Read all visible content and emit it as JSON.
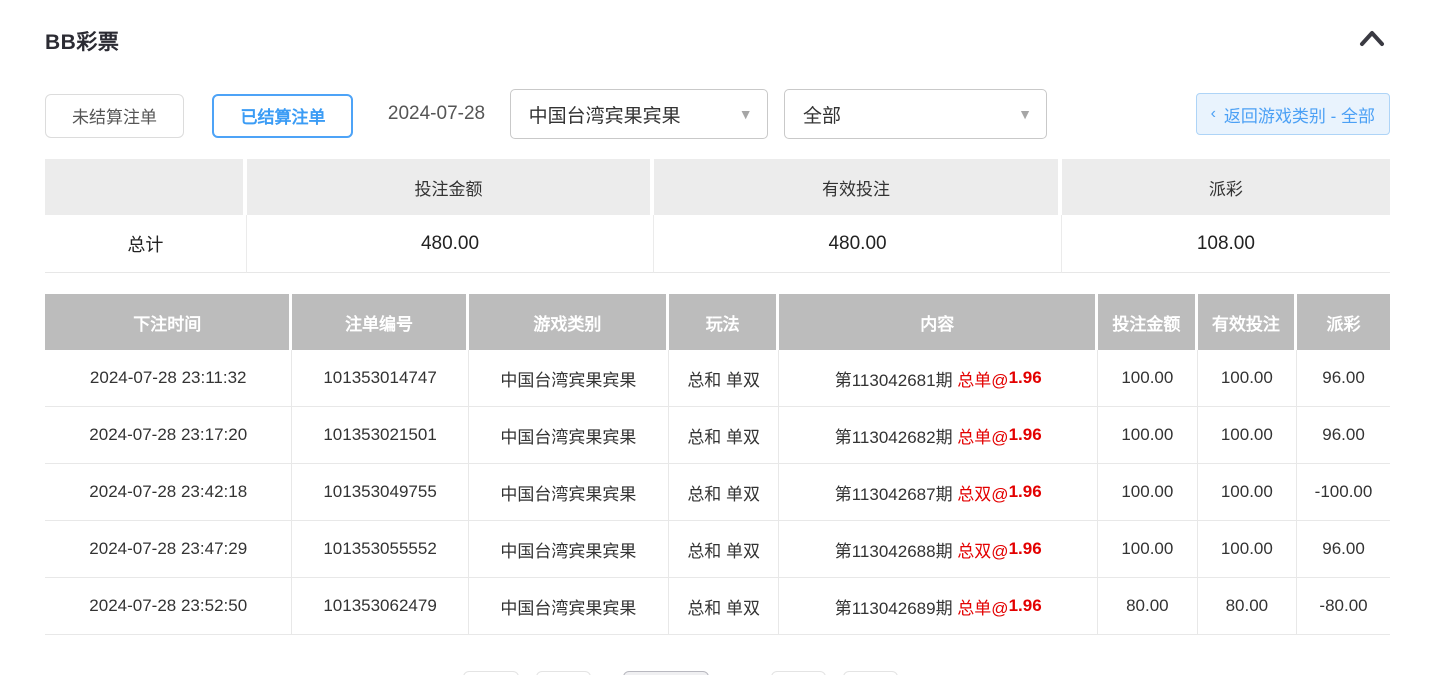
{
  "page": {
    "title": "BB彩票"
  },
  "filters": {
    "tab_unsettled": "未结算注单",
    "tab_settled": "已结算注单",
    "date": "2024-07-28",
    "game_select_value": "中国台湾宾果宾果",
    "category_select_value": "全部",
    "back_chevron": "‹",
    "back_link": "返回游戏类别 - 全部"
  },
  "summary": {
    "col_bet_amount": "投注金额",
    "col_valid_bet": "有效投注",
    "col_payout": "派彩",
    "row_label": "总计",
    "bet_amount": "480.00",
    "valid_bet": "480.00",
    "payout": "108.00"
  },
  "table": {
    "columns": {
      "time": "下注时间",
      "bet_id": "注单编号",
      "game": "游戏类别",
      "play": "玩法",
      "content": "内容",
      "bet_amount": "投注金额",
      "valid_bet": "有效投注",
      "payout": "派彩"
    },
    "rows": [
      {
        "time": "2024-07-28 23:11:32",
        "bet_id": "101353014747",
        "game": "中国台湾宾果宾果",
        "play": "总和 单双",
        "period": "第113042681期 ",
        "pick_at": "总单@",
        "odds": "1.96",
        "bet_amount": "100.00",
        "valid_bet": "100.00",
        "payout": "96.00"
      },
      {
        "time": "2024-07-28 23:17:20",
        "bet_id": "101353021501",
        "game": "中国台湾宾果宾果",
        "play": "总和 单双",
        "period": "第113042682期 ",
        "pick_at": "总单@",
        "odds": "1.96",
        "bet_amount": "100.00",
        "valid_bet": "100.00",
        "payout": "96.00"
      },
      {
        "time": "2024-07-28 23:42:18",
        "bet_id": "101353049755",
        "game": "中国台湾宾果宾果",
        "play": "总和 单双",
        "period": "第113042687期 ",
        "pick_at": "总双@",
        "odds": "1.96",
        "bet_amount": "100.00",
        "valid_bet": "100.00",
        "payout": "-100.00"
      },
      {
        "time": "2024-07-28 23:47:29",
        "bet_id": "101353055552",
        "game": "中国台湾宾果宾果",
        "play": "总和 单双",
        "period": "第113042688期 ",
        "pick_at": "总双@",
        "odds": "1.96",
        "bet_amount": "100.00",
        "valid_bet": "100.00",
        "payout": "96.00"
      },
      {
        "time": "2024-07-28 23:52:50",
        "bet_id": "101353062479",
        "game": "中国台湾宾果宾果",
        "play": "总和 单双",
        "period": "第113042689期 ",
        "pick_at": "总单@",
        "odds": "1.96",
        "bet_amount": "80.00",
        "valid_bet": "80.00",
        "payout": "-80.00"
      }
    ]
  },
  "colors": {
    "accent_blue": "#3b9cf5",
    "back_btn_bg": "#e9f3fd",
    "table_header_gray": "#bcbcbc",
    "summary_header_gray": "#ececec",
    "odds_red": "#e30000",
    "negative_red": "#f56c6c"
  }
}
